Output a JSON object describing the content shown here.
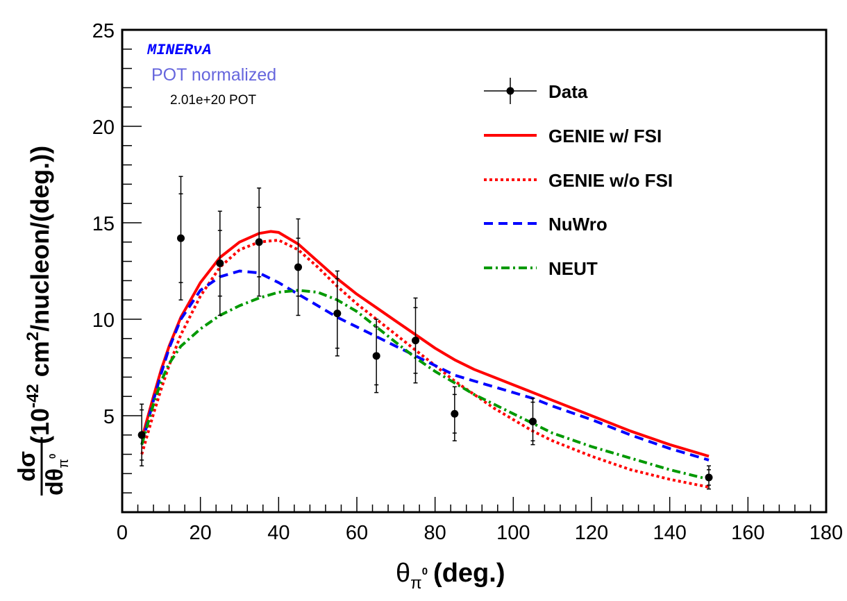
{
  "chart_data": {
    "type": "line",
    "xlabel": {
      "symbol": "θ",
      "sub": "π",
      "sup": "0",
      "text": "(deg.)"
    },
    "ylabel": {
      "frac_num": "dσ",
      "frac_den_symbol": "dθ",
      "frac_den_sub": "π",
      "frac_den_sup": "0",
      "prefix": "(10",
      "exp1": "-42",
      "mid": " cm",
      "exp2": "2",
      "suffix": "/nucleon/(deg.))"
    },
    "xlim": [
      0,
      180
    ],
    "ylim": [
      0,
      25
    ],
    "x_ticks": [
      0,
      20,
      40,
      60,
      80,
      100,
      120,
      140,
      160,
      180
    ],
    "y_ticks": [
      5,
      10,
      15,
      20,
      25
    ],
    "annotations": {
      "experiment": "MINERνA",
      "normalization": "POT normalized",
      "pot": "2.01e+20 POT"
    },
    "legend_position": "top-right",
    "data_points": {
      "name": "Data",
      "x": [
        5,
        15,
        25,
        35,
        45,
        55,
        65,
        75,
        85,
        105,
        150
      ],
      "y": [
        4.0,
        14.2,
        12.9,
        14.0,
        12.7,
        10.3,
        8.1,
        8.9,
        5.1,
        4.7,
        1.8
      ],
      "err_inner": [
        1.3,
        2.3,
        1.7,
        1.8,
        1.5,
        1.8,
        1.5,
        1.7,
        1.0,
        1.0,
        0.4
      ],
      "err_total": [
        1.6,
        3.2,
        2.7,
        2.8,
        2.5,
        2.2,
        1.9,
        2.2,
        1.4,
        1.2,
        0.6
      ]
    },
    "series": [
      {
        "name": "GENIE w/ FSI",
        "color": "#ff0000",
        "style": "solid",
        "x": [
          5,
          8,
          10,
          12,
          15,
          20,
          25,
          30,
          35,
          38,
          40,
          45,
          50,
          55,
          60,
          65,
          70,
          75,
          80,
          85,
          90,
          95,
          100,
          105,
          110,
          120,
          130,
          140,
          150
        ],
        "y": [
          3.8,
          6.0,
          7.4,
          8.6,
          10.1,
          11.9,
          13.2,
          14.0,
          14.45,
          14.55,
          14.5,
          13.9,
          13.0,
          12.1,
          11.3,
          10.6,
          9.9,
          9.2,
          8.5,
          7.9,
          7.4,
          7.0,
          6.6,
          6.2,
          5.8,
          5.0,
          4.2,
          3.5,
          2.9
        ]
      },
      {
        "name": "GENIE w/o FSI",
        "color": "#ff0000",
        "style": "dotted",
        "x": [
          5,
          8,
          10,
          12,
          15,
          20,
          25,
          30,
          35,
          40,
          45,
          50,
          55,
          60,
          65,
          70,
          75,
          80,
          85,
          90,
          95,
          100,
          105,
          110,
          120,
          130,
          140,
          150
        ],
        "y": [
          3.0,
          5.1,
          6.4,
          7.6,
          9.2,
          11.2,
          12.7,
          13.6,
          14.0,
          14.1,
          13.6,
          12.7,
          11.7,
          10.8,
          10.0,
          9.2,
          8.4,
          7.6,
          6.8,
          6.1,
          5.4,
          4.8,
          4.2,
          3.7,
          2.9,
          2.2,
          1.7,
          1.3
        ]
      },
      {
        "name": "NuWro",
        "color": "#0000ff",
        "style": "dashed",
        "x": [
          5,
          8,
          10,
          12,
          15,
          20,
          25,
          30,
          35,
          40,
          45,
          50,
          55,
          60,
          65,
          70,
          75,
          80,
          85,
          90,
          95,
          100,
          105,
          110,
          120,
          130,
          140,
          150
        ],
        "y": [
          3.5,
          5.8,
          7.2,
          8.5,
          10.0,
          11.5,
          12.2,
          12.5,
          12.4,
          11.9,
          11.3,
          10.7,
          10.1,
          9.6,
          9.1,
          8.6,
          8.1,
          7.6,
          7.1,
          6.8,
          6.5,
          6.2,
          5.9,
          5.5,
          4.8,
          4.0,
          3.3,
          2.7
        ]
      },
      {
        "name": "NEUT",
        "color": "#009900",
        "style": "dashdot",
        "x": [
          5,
          8,
          10,
          12,
          15,
          20,
          25,
          30,
          35,
          40,
          45,
          50,
          55,
          60,
          65,
          70,
          75,
          80,
          85,
          90,
          95,
          100,
          105,
          110,
          120,
          130,
          140,
          150
        ],
        "y": [
          3.5,
          5.6,
          6.8,
          7.7,
          8.6,
          9.5,
          10.2,
          10.7,
          11.1,
          11.4,
          11.5,
          11.4,
          11.0,
          10.4,
          9.6,
          8.8,
          8.0,
          7.3,
          6.7,
          6.1,
          5.6,
          5.1,
          4.6,
          4.1,
          3.4,
          2.8,
          2.2,
          1.7
        ]
      }
    ]
  }
}
